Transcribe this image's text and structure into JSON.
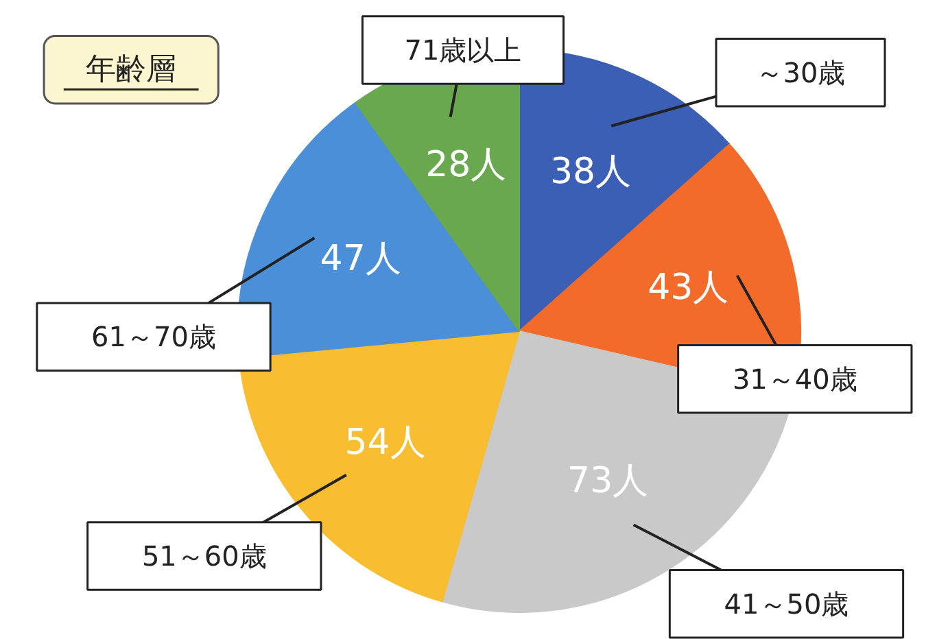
{
  "chart_data": {
    "type": "pie",
    "title": "年齢層",
    "categories": [
      "～30歳",
      "31～40歳",
      "41～50歳",
      "51～60歳",
      "61～70歳",
      "71歳以上"
    ],
    "values": [
      38,
      43,
      73,
      54,
      47,
      28
    ],
    "value_labels": [
      "38人",
      "43人",
      "73人",
      "54人",
      "47人",
      "28人"
    ],
    "colors": [
      "#3b5fb5",
      "#f26b2b",
      "#c9c9c9",
      "#f8bd30",
      "#4b8fd8",
      "#6aa84f"
    ]
  }
}
